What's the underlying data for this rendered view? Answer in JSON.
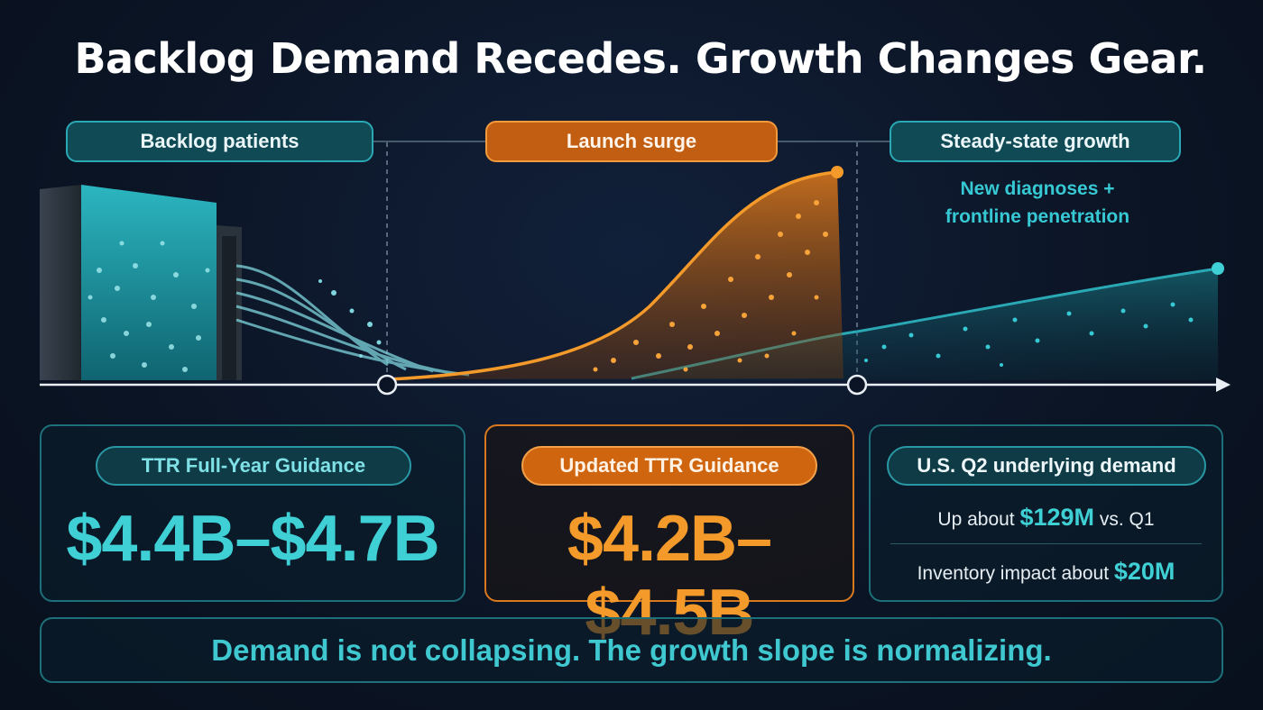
{
  "title": "Backlog Demand Recedes. Growth Changes Gear.",
  "phases": {
    "backlog": "Backlog patients",
    "launch": "Launch surge",
    "steady": "Steady-state growth"
  },
  "steady_note": {
    "line1": "New diagnoses +",
    "line2": "frontline penetration"
  },
  "cards": {
    "original": {
      "label": "TTR Full-Year Guidance",
      "value": "$4.4B–$4.7B"
    },
    "updated": {
      "label": "Updated TTR Guidance",
      "value": "$4.2B–$4.5B"
    },
    "us_demand": {
      "label": "U.S. Q2 underlying demand",
      "line1_prefix": "Up about ",
      "line1_value": "$129M",
      "line1_suffix": " vs. Q1",
      "line2_prefix": "Inventory impact about ",
      "line2_value": "$20M"
    }
  },
  "banner": "Demand is not collapsing. The growth slope is normalizing.",
  "colors": {
    "background": "#0b1424",
    "teal": "#3fd0d6",
    "orange": "#f39a2b",
    "white": "#ffffff"
  }
}
